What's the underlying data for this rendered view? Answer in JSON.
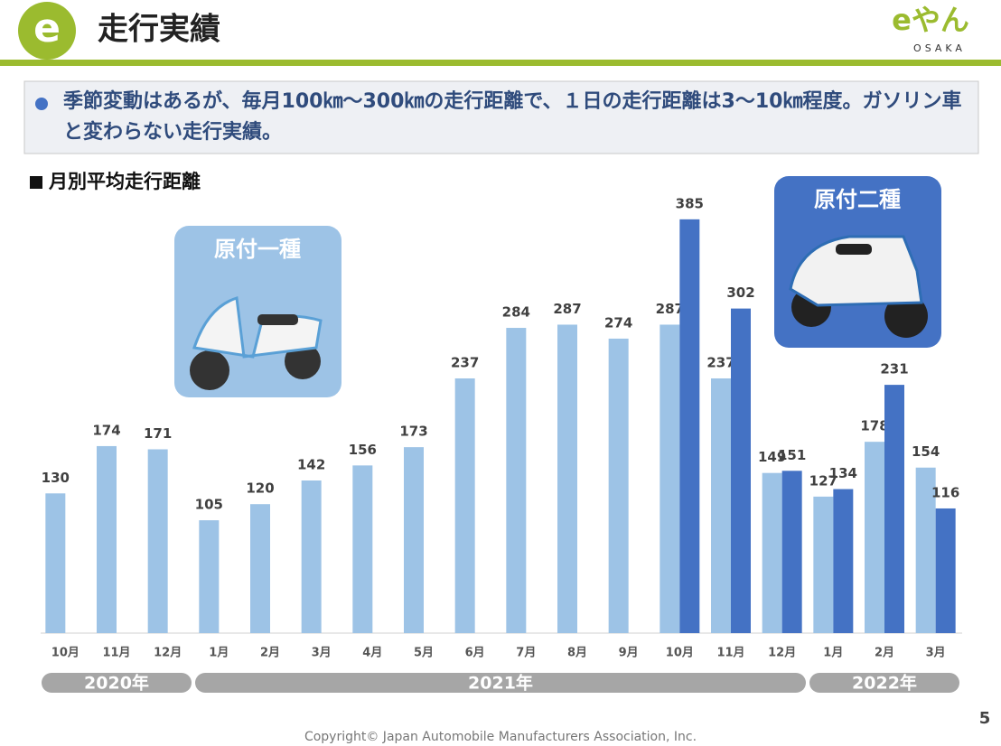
{
  "header": {
    "title": "走行実績",
    "logo_text": "eやん",
    "logo_sub": "OSAKA"
  },
  "summary": "季節変動はあるが、毎月100㎞～300㎞の走行距離で、１日の走行距離は3～10㎞程度。ガソリン車と変わらない走行実績。",
  "chart_data": {
    "type": "bar",
    "title": "月別平均走行距離",
    "categories": [
      "10月",
      "11月",
      "12月",
      "1月",
      "2月",
      "3月",
      "4月",
      "5月",
      "6月",
      "7月",
      "8月",
      "9月",
      "10月",
      "11月",
      "12月",
      "1月",
      "2月",
      "3月"
    ],
    "x_groups": [
      "2020年",
      "2021年",
      "2022年"
    ],
    "series": [
      {
        "name": "原付一種",
        "color": "#9dc3e6",
        "values": [
          130,
          174,
          171,
          105,
          120,
          142,
          156,
          173,
          237,
          284,
          287,
          274,
          287,
          237,
          149,
          127,
          178,
          154
        ]
      },
      {
        "name": "原付二種",
        "color": "#4472c4",
        "values": [
          null,
          null,
          null,
          null,
          null,
          null,
          null,
          null,
          null,
          null,
          null,
          null,
          385,
          302,
          151,
          134,
          231,
          116
        ]
      }
    ],
    "ylim": [
      0,
      400
    ],
    "grid": false
  },
  "footer": {
    "copyright": "Copyright© Japan Automobile Manufacturers Association, Inc.",
    "page": "5"
  }
}
